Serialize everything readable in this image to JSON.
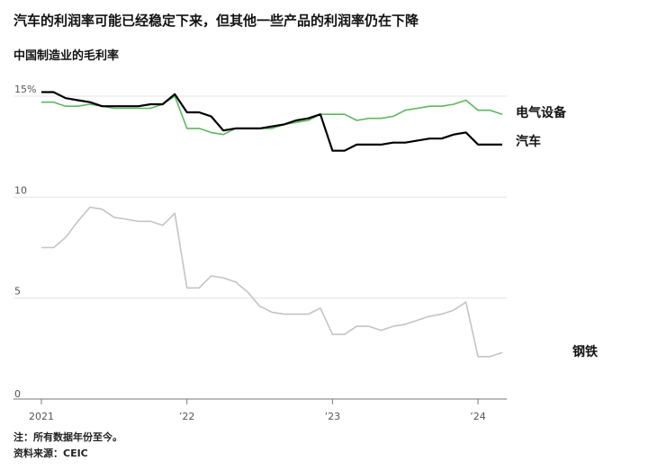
{
  "title": "汽车的利润率可能已经稳定下来，但其他一些产品的利润率仍在下降",
  "subtitle": "中国制造业的毛利率",
  "note": "注：所有数据年份至今。",
  "source": "资料来源：CEIC",
  "colors": {
    "electrical": "#5cb85c",
    "auto": "#000000",
    "steel": "#c4c4c4",
    "grid": "#e3e3e3",
    "axis": "#777777"
  },
  "chart_data": {
    "type": "line",
    "ylim": [
      0,
      15
    ],
    "yticks": [
      {
        "value": 15,
        "label": "15%"
      },
      {
        "value": 10,
        "label": "10"
      },
      {
        "value": 5,
        "label": "5"
      },
      {
        "value": 0,
        "label": "0"
      }
    ],
    "xticks": [
      {
        "index": 0,
        "label": "2021"
      },
      {
        "index": 12,
        "label": "’22"
      },
      {
        "index": 24,
        "label": "’23"
      },
      {
        "index": 36,
        "label": "’24"
      }
    ],
    "x_count": 39,
    "series": [
      {
        "key": "electrical",
        "name": "电气设备",
        "values": [
          14.7,
          14.7,
          14.5,
          14.5,
          14.6,
          14.5,
          14.4,
          14.4,
          14.4,
          14.4,
          14.6,
          15.0,
          13.4,
          13.4,
          13.2,
          13.1,
          13.4,
          13.4,
          13.4,
          13.4,
          13.6,
          13.7,
          13.8,
          14.1,
          14.1,
          14.1,
          13.8,
          13.9,
          13.9,
          14.0,
          14.3,
          14.4,
          14.5,
          14.5,
          14.6,
          14.8,
          14.3,
          14.3,
          14.1
        ]
      },
      {
        "key": "auto",
        "name": "汽车",
        "values": [
          15.2,
          15.2,
          14.9,
          14.8,
          14.7,
          14.5,
          14.5,
          14.5,
          14.5,
          14.6,
          14.6,
          15.1,
          14.2,
          14.2,
          14.0,
          13.3,
          13.4,
          13.4,
          13.4,
          13.5,
          13.6,
          13.8,
          13.9,
          14.1,
          12.3,
          12.3,
          12.6,
          12.6,
          12.6,
          12.7,
          12.7,
          12.8,
          12.9,
          12.9,
          13.1,
          13.2,
          12.6,
          12.6,
          12.6
        ]
      },
      {
        "key": "steel",
        "name": "钢铁",
        "values": [
          7.5,
          7.5,
          8.0,
          8.8,
          9.5,
          9.4,
          9.0,
          8.9,
          8.8,
          8.8,
          8.6,
          9.2,
          5.5,
          5.5,
          6.1,
          6.0,
          5.8,
          5.3,
          4.6,
          4.3,
          4.2,
          4.2,
          4.2,
          4.5,
          3.2,
          3.2,
          3.6,
          3.6,
          3.4,
          3.6,
          3.7,
          3.9,
          4.1,
          4.2,
          4.4,
          4.8,
          2.1,
          2.1,
          2.3
        ]
      }
    ]
  }
}
